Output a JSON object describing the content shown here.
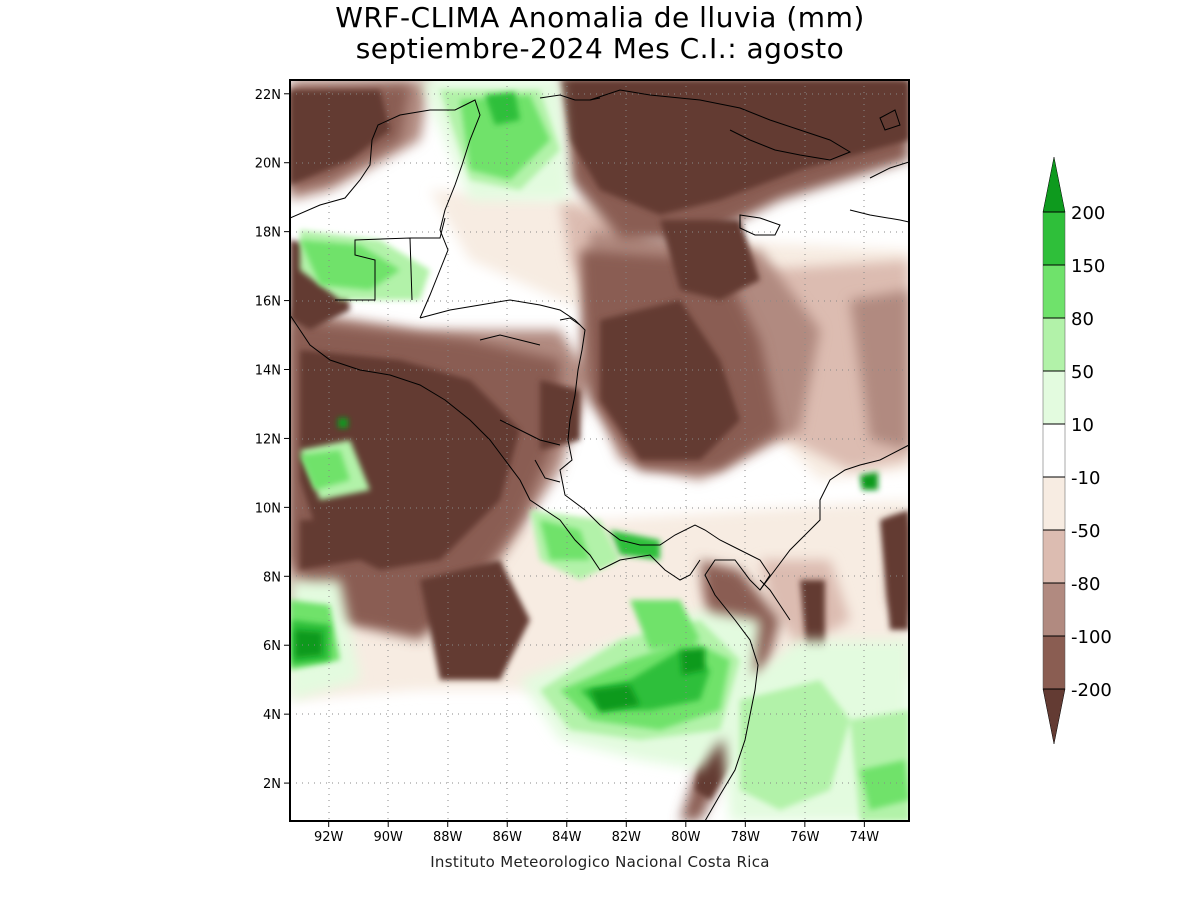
{
  "title": {
    "line1": "WRF-CLIMA Anomalia de lluvia (mm)",
    "line2": "septiembre-2024 Mes C.I.: agosto"
  },
  "credit": "Instituto Meteorologico Nacional Costa Rica",
  "axes": {
    "lat_labels": [
      "22N",
      "20N",
      "18N",
      "16N",
      "14N",
      "12N",
      "10N",
      "8N",
      "6N",
      "4N",
      "2N"
    ],
    "lat_values": [
      22,
      20,
      18,
      16,
      14,
      12,
      10,
      8,
      6,
      4,
      2
    ],
    "lon_labels": [
      "92W",
      "90W",
      "88W",
      "86W",
      "84W",
      "82W",
      "80W",
      "78W",
      "76W",
      "74W"
    ],
    "lon_values": [
      -92,
      -90,
      -88,
      -86,
      -84,
      -82,
      -80,
      -78,
      -76,
      -74
    ],
    "lat_range": [
      0.9,
      22.4
    ],
    "lon_range": [
      -93.3,
      -72.5
    ],
    "grid": true
  },
  "colorbar": {
    "labels": [
      "200",
      "150",
      "80",
      "50",
      "10",
      "-10",
      "-50",
      "-80",
      "-100",
      "-200"
    ],
    "levels": [
      200,
      150,
      80,
      50,
      10,
      -10,
      -50,
      -80,
      -100,
      -200
    ],
    "colors": {
      "gt_200": "#0e9a1e",
      "150_200": "#2fbf3a",
      "80_150": "#6fe26b",
      "50_80": "#b2f2a9",
      "10_50": "#e3fbdf",
      "-10_10": "#ffffff",
      "-50_-10": "#f7ece2",
      "-80_-50": "#dcbcb1",
      "-100_-80": "#b18a80",
      "-200_-100": "#8a5d52",
      "lt_-200": "#633b33"
    }
  }
}
